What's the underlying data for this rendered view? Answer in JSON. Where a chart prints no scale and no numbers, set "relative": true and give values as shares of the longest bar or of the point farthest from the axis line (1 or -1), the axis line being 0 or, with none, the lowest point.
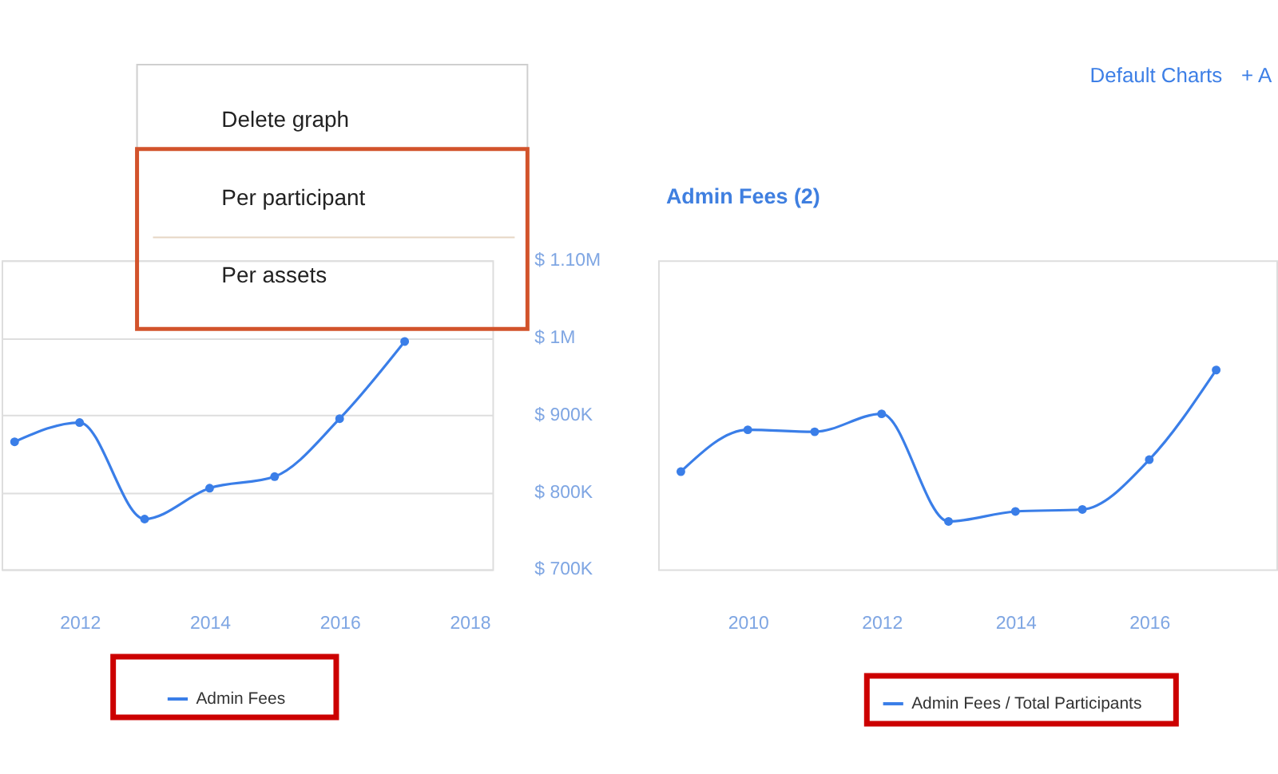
{
  "chart_data": [
    {
      "type": "line",
      "x": [
        2011,
        2012,
        2013,
        2014,
        2015,
        2016,
        2017
      ],
      "xlim": [
        2010.8,
        2018.35
      ],
      "xticks": [
        2012,
        2014,
        2016,
        2018
      ],
      "ylim": [
        700000,
        1100000
      ],
      "yticks": [
        {
          "value": 700000,
          "label": "$ 700K"
        },
        {
          "value": 800000,
          "label": "$ 800K"
        },
        {
          "value": 900000,
          "label": "$ 900K"
        },
        {
          "value": 1000000,
          "label": "$ 1M"
        },
        {
          "value": 1100000,
          "label": "$ 1.10M"
        }
      ],
      "series": [
        {
          "name": "Admin Fees",
          "color": "#3a7ee8",
          "values": [
            865000,
            890000,
            765000,
            805000,
            820000,
            895000,
            995000
          ]
        }
      ],
      "grid": "y",
      "legend": "bottom",
      "marker": "circle",
      "line_style": "solid",
      "annotations": [
        "Delete graph",
        "Per participant",
        "Per assets"
      ]
    },
    {
      "type": "line",
      "title": "Admin Fees (2)",
      "x": [
        2009,
        2010,
        2011,
        2012,
        2013,
        2014,
        2015,
        2016,
        2017
      ],
      "xlim": [
        2008.66,
        2017.9
      ],
      "xticks": [
        2010,
        2012,
        2014,
        2016
      ],
      "relative": true,
      "series": [
        {
          "name": "Admin Fees / Total Participants",
          "color": "#3a7ee8",
          "values": [
            0.49,
            0.7,
            0.69,
            0.78,
            0.24,
            0.29,
            0.3,
            0.55,
            1
          ]
        }
      ],
      "legend": "bottom",
      "marker": "circle",
      "line_style": "solid",
      "annotations": [
        "Default Charts",
        "+ A"
      ]
    }
  ]
}
